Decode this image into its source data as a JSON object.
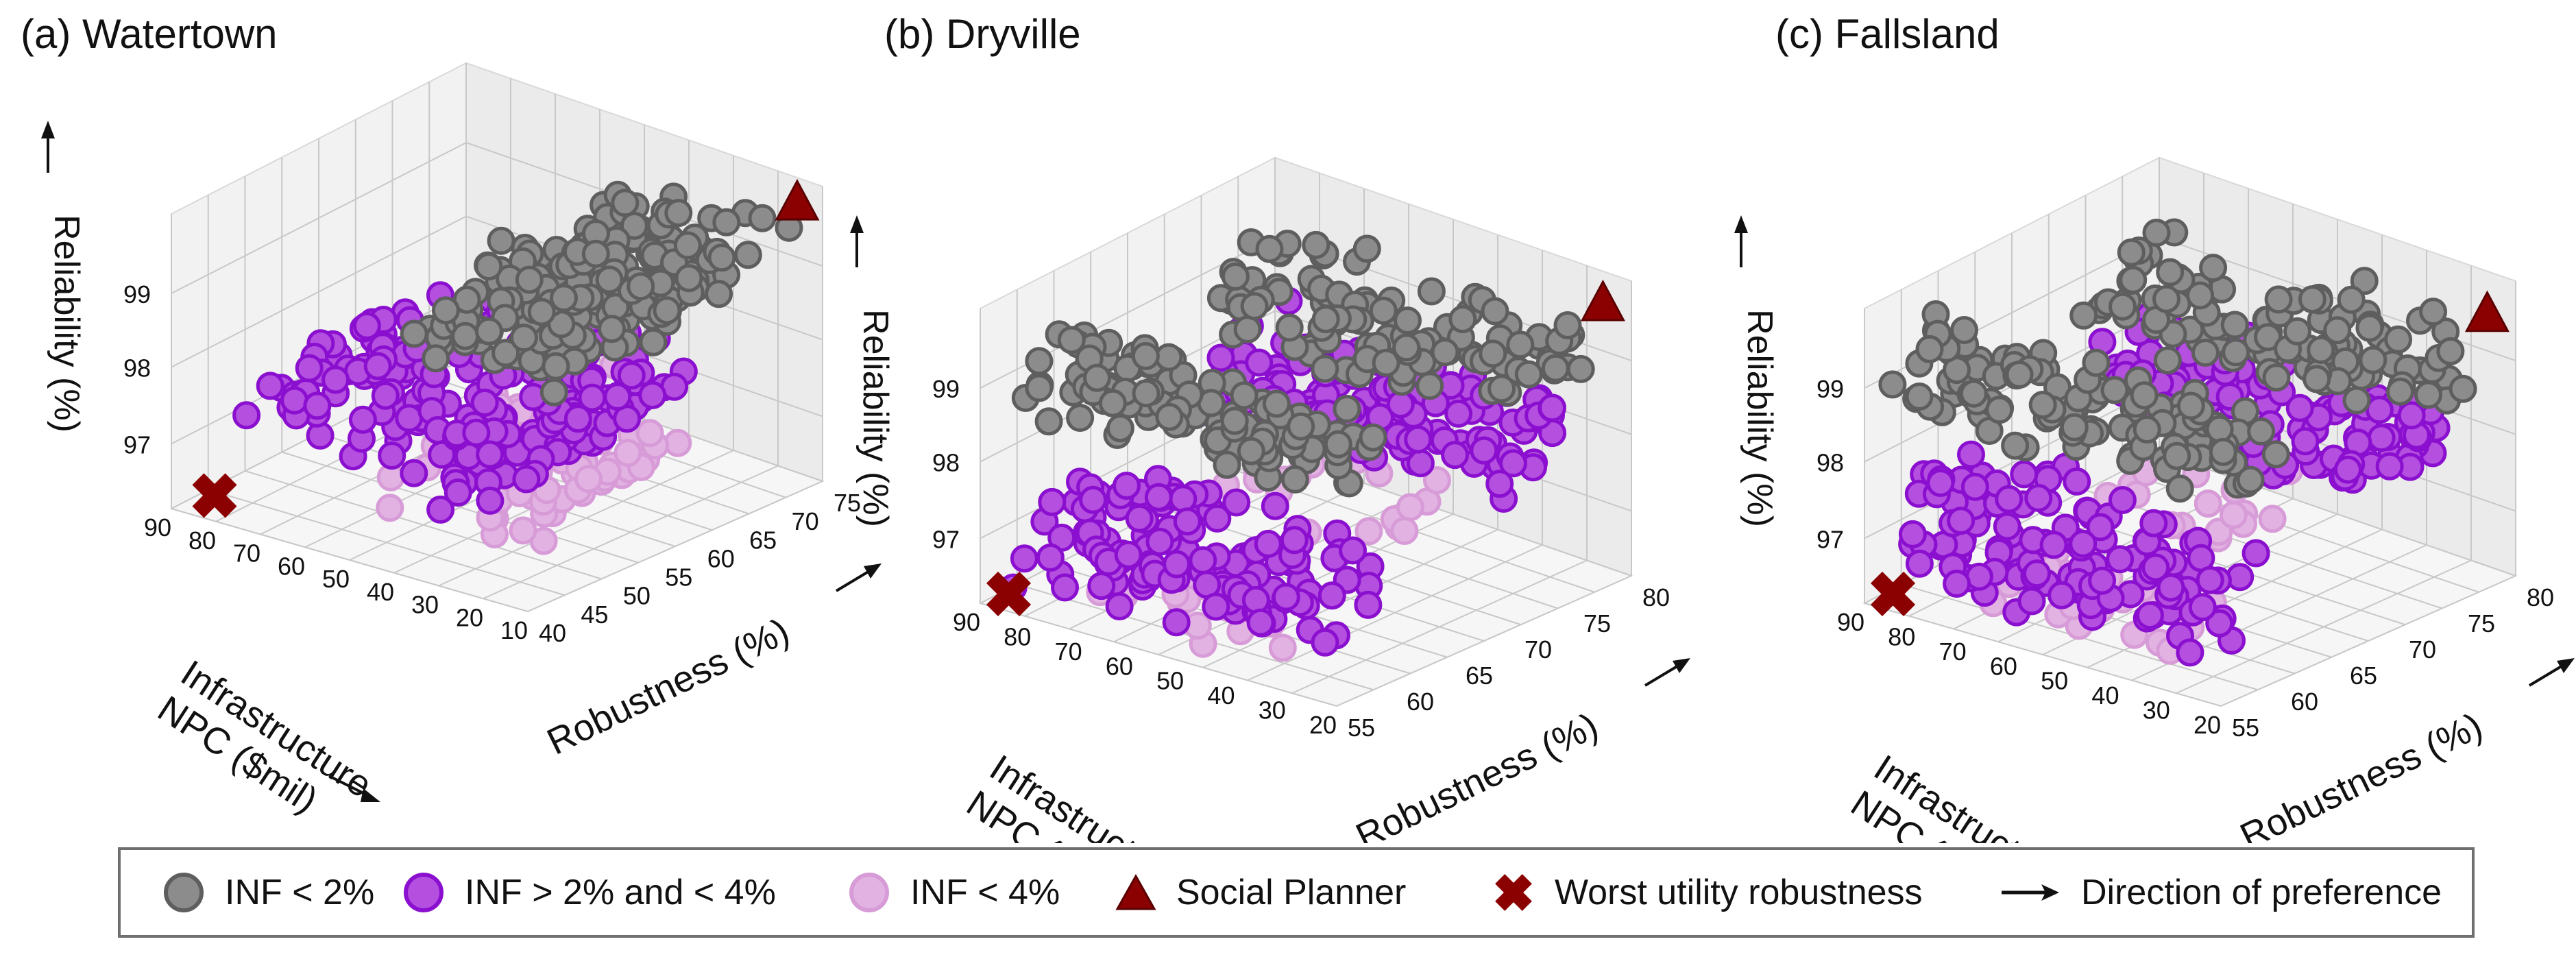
{
  "panels": [
    {
      "title": "(a) Watertown",
      "zlabel": "Reliability (%)",
      "xlabel": "Infrastructure\nNPC ($mil)",
      "ylabel": "Robustness (%)",
      "x_ticks": [
        "90",
        "80",
        "70",
        "60",
        "50",
        "40",
        "30",
        "20",
        "10"
      ],
      "y_ticks": [
        "40",
        "45",
        "50",
        "55",
        "60",
        "65",
        "70",
        "75"
      ],
      "z_ticks": [
        "97",
        "98",
        "99"
      ]
    },
    {
      "title": "(b) Dryville",
      "zlabel": "Reliability (%)",
      "xlabel": "Infrastructure\nNPC ($mil)",
      "ylabel": "Robustness (%)",
      "x_ticks": [
        "90",
        "80",
        "70",
        "60",
        "50",
        "40",
        "30",
        "20"
      ],
      "y_ticks": [
        "55",
        "60",
        "65",
        "70",
        "75",
        "80"
      ],
      "z_ticks": [
        "97",
        "98",
        "99"
      ]
    },
    {
      "title": "(c) Fallsland",
      "zlabel": "Reliability (%)",
      "xlabel": "Infrastructure\nNPC ($mil)",
      "ylabel": "Robustness (%)",
      "x_ticks": [
        "90",
        "80",
        "70",
        "60",
        "50",
        "40",
        "30",
        "20"
      ],
      "y_ticks": [
        "55",
        "60",
        "65",
        "70",
        "75",
        "80"
      ],
      "z_ticks": [
        "97",
        "98",
        "99"
      ]
    }
  ],
  "legend": {
    "inf_lt2": "INF < 2%",
    "inf_2_4": "INF > 2% and < 4%",
    "inf_lt4": "INF < 4%",
    "social_planner": "Social Planner",
    "worst_robust": "Worst utility robustness",
    "direction": "Direction of preference"
  },
  "colors": {
    "inf_lt2_fill": "#8c8c8c",
    "inf_lt2_edge": "#5e5e5e",
    "inf_2_4_fill": "#b44fe0",
    "inf_2_4_edge": "#8a0fcf",
    "inf_lt4_fill": "#e2b3e2",
    "inf_lt4_edge": "#d79bd7",
    "marker": "#8b0000",
    "pane": "#f2f2f2",
    "grid": "#c8c8c8",
    "text": "#111111"
  },
  "chart_data": [
    {
      "type": "scatter",
      "title": "(a) Watertown",
      "xlabel": "Infrastructure NPC ($mil)",
      "ylabel": "Robustness (%)",
      "zlabel": "Reliability (%)",
      "xlim": [
        10,
        90
      ],
      "ylim": [
        38,
        77
      ],
      "zlim": [
        96.8,
        99.6
      ],
      "series": [
        {
          "name": "INF < 2%",
          "clusters": [
            {
              "x": [
                10,
                45
              ],
              "y": [
                38,
                77
              ],
              "z": [
                98.8,
                99.6
              ],
              "n": 210
            }
          ]
        },
        {
          "name": "INF > 2% and < 4%",
          "clusters": [
            {
              "x": [
                22,
                85
              ],
              "y": [
                40,
                72
              ],
              "z": [
                97.4,
                98.3
              ],
              "n": 200
            }
          ]
        },
        {
          "name": "INF < 4%",
          "clusters": [
            {
              "x": [
                22,
                60
              ],
              "y": [
                44,
                76
              ],
              "z": [
                96.9,
                97.8
              ],
              "n": 110
            }
          ]
        },
        {
          "name": "Social Planner",
          "points": [
            {
              "x": 14,
              "y": 76,
              "z": 99.55
            }
          ]
        },
        {
          "name": "Worst utility robustness",
          "points": [
            {
              "x": 82,
              "y": 39,
              "z": 97.0
            }
          ]
        }
      ]
    },
    {
      "type": "scatter",
      "title": "(b) Dryville",
      "xlabel": "Infrastructure NPC ($mil)",
      "ylabel": "Robustness (%)",
      "zlabel": "Reliability (%)",
      "xlim": [
        18,
        92
      ],
      "ylim": [
        52,
        84
      ],
      "zlim": [
        96.9,
        99.5
      ],
      "series": [
        {
          "name": "INF < 2%",
          "clusters": [
            {
              "x": [
                20,
                90
              ],
              "y": [
                53,
                60
              ],
              "z": [
                98.6,
                99.4
              ],
              "n": 110
            },
            {
              "x": [
                20,
                90
              ],
              "y": [
                72,
                83
              ],
              "z": [
                98.6,
                99.4
              ],
              "n": 110
            }
          ]
        },
        {
          "name": "INF > 2% and < 4%",
          "clusters": [
            {
              "x": [
                25,
                90
              ],
              "y": [
                53,
                62
              ],
              "z": [
                97.0,
                98.2
              ],
              "n": 130
            },
            {
              "x": [
                25,
                90
              ],
              "y": [
                72,
                83
              ],
              "z": [
                97.8,
                98.7
              ],
              "n": 130
            }
          ]
        },
        {
          "name": "INF < 4%",
          "clusters": [
            {
              "x": [
                35,
                75
              ],
              "y": [
                53,
                63
              ],
              "z": [
                96.9,
                97.5
              ],
              "n": 25
            },
            {
              "x": [
                40,
                80
              ],
              "y": [
                68,
                78
              ],
              "z": [
                97.3,
                97.9
              ],
              "n": 20
            }
          ]
        },
        {
          "name": "Social Planner",
          "points": [
            {
              "x": 22,
              "y": 83,
              "z": 99.4
            }
          ]
        },
        {
          "name": "Worst utility robustness",
          "points": [
            {
              "x": 88,
              "y": 53,
              "z": 97.0
            }
          ]
        }
      ]
    },
    {
      "type": "scatter",
      "title": "(c) Fallsland",
      "xlabel": "Infrastructure NPC ($mil)",
      "ylabel": "Robustness (%)",
      "zlabel": "Reliability (%)",
      "xlim": [
        18,
        92
      ],
      "ylim": [
        52,
        84
      ],
      "zlim": [
        96.9,
        99.5
      ],
      "series": [
        {
          "name": "INF < 2%",
          "clusters": [
            {
              "x": [
                20,
                90
              ],
              "y": [
                53,
                61
              ],
              "z": [
                98.6,
                99.4
              ],
              "n": 110
            },
            {
              "x": [
                20,
                90
              ],
              "y": [
                72,
                83
              ],
              "z": [
                98.6,
                99.4
              ],
              "n": 110
            }
          ]
        },
        {
          "name": "INF > 2% and < 4%",
          "clusters": [
            {
              "x": [
                25,
                90
              ],
              "y": [
                53,
                62
              ],
              "z": [
                97.0,
                98.2
              ],
              "n": 130
            },
            {
              "x": [
                25,
                90
              ],
              "y": [
                72,
                83
              ],
              "z": [
                97.8,
                98.7
              ],
              "n": 130
            }
          ]
        },
        {
          "name": "INF < 4%",
          "clusters": [
            {
              "x": [
                35,
                75
              ],
              "y": [
                53,
                63
              ],
              "z": [
                96.9,
                97.5
              ],
              "n": 25
            },
            {
              "x": [
                40,
                80
              ],
              "y": [
                68,
                78
              ],
              "z": [
                97.3,
                97.9
              ],
              "n": 20
            }
          ]
        },
        {
          "name": "Social Planner",
          "points": [
            {
              "x": 22,
              "y": 83,
              "z": 99.3
            }
          ]
        },
        {
          "name": "Worst utility robustness",
          "points": [
            {
              "x": 88,
              "y": 53,
              "z": 97.0
            }
          ]
        }
      ]
    }
  ]
}
